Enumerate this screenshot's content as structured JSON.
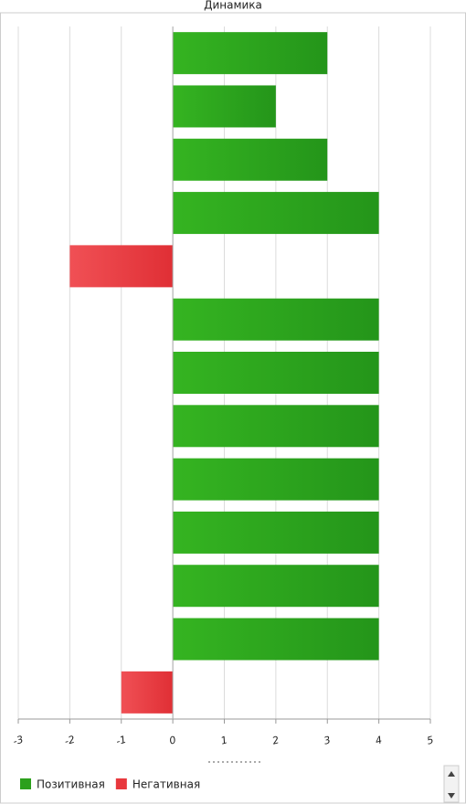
{
  "chart_data": {
    "type": "bar",
    "orientation": "horizontal",
    "title": "Динамика",
    "categories": [
      null,
      null,
      null,
      null,
      null,
      null,
      null,
      null,
      null,
      null,
      null,
      null,
      null
    ],
    "series": [
      {
        "name": "Позитивная",
        "color": "#2ca01c",
        "values": [
          3,
          2,
          3,
          4,
          null,
          4,
          4,
          4,
          4,
          4,
          4,
          4,
          null
        ]
      },
      {
        "name": "Негативная",
        "color": "#e8383d",
        "values": [
          null,
          null,
          null,
          null,
          -2,
          null,
          null,
          null,
          null,
          null,
          null,
          null,
          -1
        ]
      }
    ],
    "xlim": [
      -3,
      5
    ],
    "xticks": [
      -3,
      -2,
      -1,
      0,
      1,
      2,
      3,
      4,
      5
    ],
    "grid": true,
    "legend": "bottom-left"
  }
}
